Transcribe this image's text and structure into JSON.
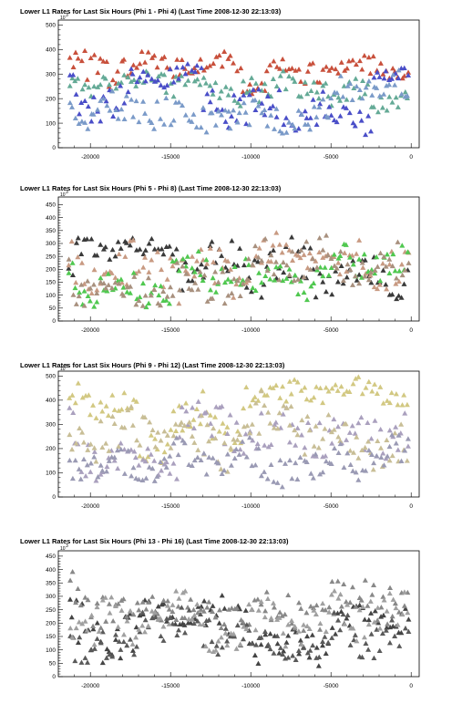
{
  "colors": {
    "panel1": [
      "#c8503c",
      "#64aa96",
      "#4a4ec8",
      "#7a9ac8"
    ],
    "panel2": [
      "#3a3a3a",
      "#c89a82",
      "#50c850",
      "#a8907e"
    ],
    "panel3": [
      "#d2c882",
      "#aaa0be",
      "#c8be96",
      "#9a9ab4"
    ],
    "panel4": [
      "#444444",
      "#888888",
      "#5a5a5a",
      "#a0a0a0"
    ]
  },
  "chart_data": [
    {
      "type": "scatter",
      "title": "Lower L1 Rates for Last Six Hours (Phi 1 - Phi 4) (Last Time 2008-12-30 22:13:03)",
      "y_exponent": "10",
      "xlim": [
        -22000,
        500
      ],
      "ylim": [
        0,
        520
      ],
      "x_ticks": [
        -20000,
        -15000,
        -10000,
        -5000,
        0
      ],
      "x_tick_labels": [
        "-20000",
        "-15000",
        "-10000",
        "-5000",
        "0"
      ],
      "y_ticks": [
        0,
        100,
        200,
        300,
        400,
        500
      ],
      "y_tick_labels": [
        "0",
        "100",
        "200",
        "300",
        "400",
        "500"
      ],
      "series": [
        {
          "levels": [
            [
              -21000,
              -17500,
              320,
              60
            ],
            [
              -17500,
              -10500,
              340,
              40
            ],
            [
              -10500,
              -5500,
              300,
              60
            ],
            [
              -5500,
              0,
              330,
              40
            ]
          ]
        },
        {
          "levels": [
            [
              -21000,
              -13000,
              270,
              50
            ],
            [
              -13000,
              -6000,
              240,
              60
            ],
            [
              -6000,
              0,
              220,
              60
            ]
          ]
        },
        {
          "levels": [
            [
              -21000,
              -17500,
              170,
              70
            ],
            [
              -17500,
              -13000,
              300,
              40
            ],
            [
              -13000,
              -10000,
              170,
              70
            ],
            [
              -10000,
              -5000,
              160,
              70
            ],
            [
              -5000,
              -2500,
              110,
              50
            ],
            [
              -2500,
              0,
              300,
              25
            ]
          ]
        },
        {
          "levels": [
            [
              -21000,
              -15000,
              150,
              60
            ],
            [
              -15000,
              -10000,
              130,
              60
            ],
            [
              -10000,
              -5000,
              120,
              60
            ],
            [
              -5000,
              0,
              240,
              60
            ]
          ]
        }
      ]
    },
    {
      "type": "scatter",
      "title": "Lower L1 Rates for Last Six Hours (Phi 5 - Phi 8) (Last Time 2008-12-30 22:13:03)",
      "y_exponent": "10",
      "xlim": [
        -22000,
        500
      ],
      "ylim": [
        0,
        480
      ],
      "x_ticks": [
        -20000,
        -15000,
        -10000,
        -5000,
        0
      ],
      "x_tick_labels": [
        "-20000",
        "-15000",
        "-10000",
        "-5000",
        "0"
      ],
      "y_ticks": [
        0,
        50,
        100,
        150,
        200,
        250,
        300,
        350,
        400,
        450
      ],
      "y_tick_labels": [
        "0",
        "50",
        "100",
        "150",
        "200",
        "250",
        "300",
        "350",
        "400",
        "450"
      ],
      "series": [
        {
          "levels": [
            [
              -21000,
              -15000,
              280,
              40
            ],
            [
              -15000,
              -10000,
              230,
              80
            ],
            [
              -10000,
              -5000,
              200,
              100
            ],
            [
              -5000,
              0,
              180,
              80
            ]
          ]
        },
        {
          "levels": [
            [
              -21000,
              -15000,
              200,
              90
            ],
            [
              -15000,
              -10000,
              180,
              90
            ],
            [
              -10000,
              -5000,
              260,
              60
            ],
            [
              -5000,
              0,
              220,
              80
            ]
          ]
        },
        {
          "levels": [
            [
              -21000,
              -15000,
              120,
              60
            ],
            [
              -15000,
              -10000,
              180,
              70
            ],
            [
              -10000,
              -5000,
              160,
              70
            ],
            [
              -5000,
              0,
              230,
              60
            ]
          ]
        },
        {
          "levels": [
            [
              -21000,
              -15000,
              130,
              60
            ],
            [
              -15000,
              -10000,
              150,
              70
            ],
            [
              -10000,
              -5000,
              240,
              70
            ],
            [
              -5000,
              0,
              200,
              80
            ]
          ]
        }
      ]
    },
    {
      "type": "scatter",
      "title": "Lower L1 Rates for Last Six Hours (Phi 9 - Phi 12) (Last Time 2008-12-30 22:13:03)",
      "y_exponent": "10",
      "xlim": [
        -22000,
        500
      ],
      "ylim": [
        0,
        520
      ],
      "x_ticks": [
        -20000,
        -15000,
        -10000,
        -5000,
        0
      ],
      "x_tick_labels": [
        "-20000",
        "-15000",
        "-10000",
        "-5000",
        "0"
      ],
      "y_ticks": [
        0,
        100,
        200,
        300,
        400,
        500
      ],
      "y_tick_labels": [
        "0",
        "100",
        "200",
        "300",
        "400",
        "500"
      ],
      "series": [
        {
          "levels": [
            [
              -21000,
              -17000,
              390,
              60
            ],
            [
              -17000,
              -15000,
              180,
              60
            ],
            [
              -15000,
              -12500,
              360,
              70
            ],
            [
              -12500,
              -10500,
              250,
              70
            ],
            [
              -10500,
              -7000,
              420,
              50
            ],
            [
              -7000,
              -2000,
              440,
              40
            ],
            [
              -2000,
              0,
              420,
              40
            ]
          ]
        },
        {
          "levels": [
            [
              -21000,
              -17000,
              160,
              70
            ],
            [
              -17000,
              -14500,
              140,
              50
            ],
            [
              -14500,
              -10000,
              300,
              90
            ],
            [
              -10000,
              -5000,
              260,
              90
            ],
            [
              -5000,
              0,
              260,
              80
            ]
          ]
        },
        {
          "levels": [
            [
              -21000,
              -15000,
              270,
              100
            ],
            [
              -15000,
              -10000,
              220,
              90
            ],
            [
              -10000,
              -5000,
              300,
              100
            ],
            [
              -5000,
              0,
              200,
              90
            ]
          ]
        },
        {
          "levels": [
            [
              -21000,
              -15000,
              130,
              60
            ],
            [
              -15000,
              -10000,
              160,
              70
            ],
            [
              -10000,
              -5000,
              120,
              60
            ],
            [
              -5000,
              0,
              160,
              70
            ]
          ]
        }
      ]
    },
    {
      "type": "scatter",
      "title": "Lower L1 Rates for Last Six Hours (Phi 13 - Phi 16) (Last Time 2008-12-30 22:13:03)",
      "y_exponent": "10",
      "xlim": [
        -22000,
        500
      ],
      "ylim": [
        0,
        470
      ],
      "x_ticks": [
        -20000,
        -15000,
        -10000,
        -5000,
        0
      ],
      "x_tick_labels": [
        "-20000",
        "-15000",
        "-10000",
        "-5000",
        "0"
      ],
      "y_ticks": [
        0,
        50,
        100,
        150,
        200,
        250,
        300,
        350,
        400,
        450
      ],
      "y_tick_labels": [
        "0",
        "50",
        "100",
        "150",
        "200",
        "250",
        "300",
        "350",
        "400",
        "450"
      ],
      "series": [
        {
          "levels": [
            [
              -21000,
              -17000,
              160,
              90
            ],
            [
              -17000,
              -13000,
              240,
              40
            ],
            [
              -13000,
              -10000,
              200,
              80
            ],
            [
              -10000,
              -5000,
              120,
              60
            ],
            [
              -5000,
              0,
              220,
              60
            ]
          ]
        },
        {
          "levels": [
            [
              -21000,
              -17000,
              260,
              60
            ],
            [
              -17000,
              -13000,
              260,
              40
            ],
            [
              -13000,
              -10000,
              220,
              60
            ],
            [
              -10000,
              -5000,
              240,
              60
            ],
            [
              -5000,
              0,
              300,
              80
            ]
          ]
        },
        {
          "levels": [
            [
              -21000,
              -17000,
              120,
              60
            ],
            [
              -17000,
              -13000,
              200,
              50
            ],
            [
              -13000,
              -10000,
              150,
              60
            ],
            [
              -10000,
              -5000,
              100,
              50
            ],
            [
              -5000,
              0,
              150,
              70
            ]
          ]
        },
        {
          "levels": [
            [
              -21000,
              -17000,
              200,
              80
            ],
            [
              -17000,
              -13000,
              240,
              60
            ],
            [
              -13000,
              -10000,
              180,
              80
            ],
            [
              -10000,
              -5000,
              200,
              80
            ],
            [
              -5000,
              0,
              240,
              80
            ]
          ]
        }
      ]
    }
  ]
}
